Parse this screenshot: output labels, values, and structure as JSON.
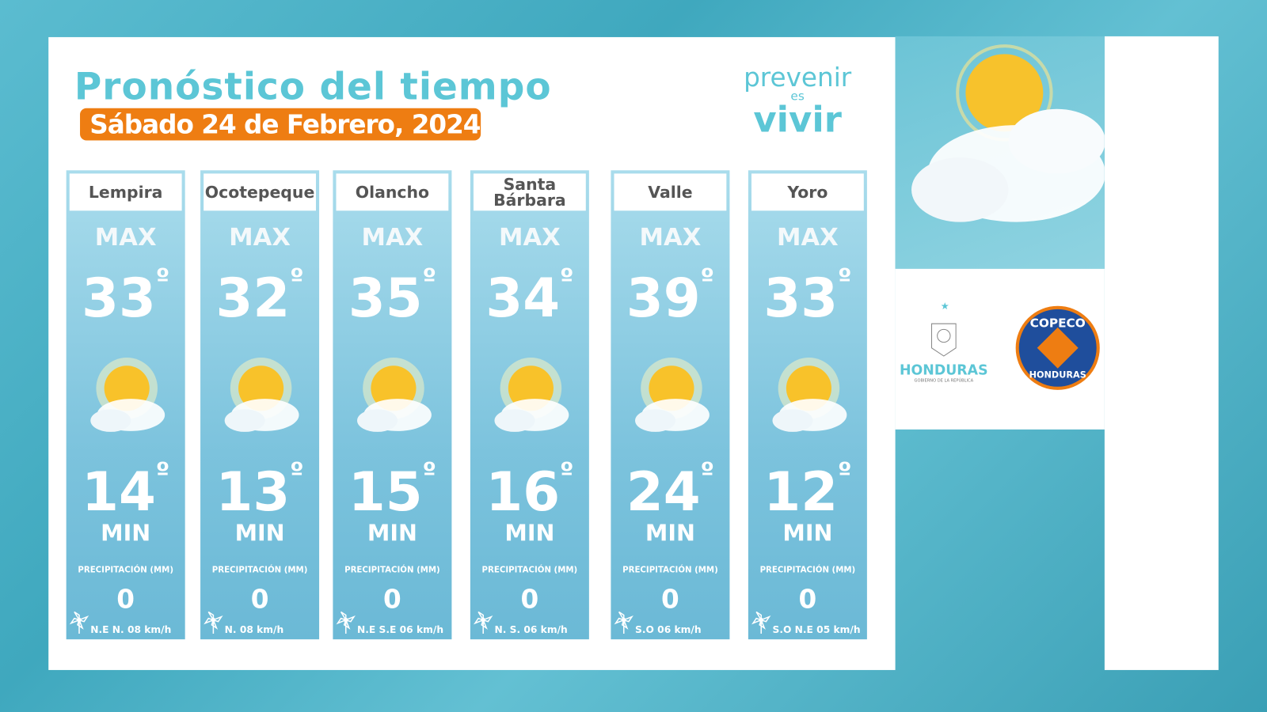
{
  "header": {
    "title": "Pronóstico del tiempo",
    "date": "Sábado 24 de Febrero, 2024"
  },
  "brand": {
    "line1": "prevenir",
    "line2": "es",
    "line3": "vivir"
  },
  "labels": {
    "max": "MAX",
    "min": "MIN",
    "precip": "PRECIPITACIÓN (MM)",
    "deg": "º"
  },
  "cities": [
    {
      "name": "Lempira",
      "max": "33",
      "min": "14",
      "precip": "0",
      "wind": "N.E  N. 08 km/h"
    },
    {
      "name": "Ocotepeque",
      "max": "32",
      "min": "13",
      "precip": "0",
      "wind": "N.   08 km/h"
    },
    {
      "name": "Olancho",
      "max": "35",
      "min": "15",
      "precip": "0",
      "wind": "N.E  S.E 06 km/h"
    },
    {
      "name": "Santa Bárbara",
      "max": "34",
      "min": "16",
      "precip": "0",
      "wind": "N.  S. 06 km/h"
    },
    {
      "name": "Valle",
      "max": "39",
      "min": "24",
      "precip": "0",
      "wind": "S.O 06 km/h"
    },
    {
      "name": "Yoro",
      "max": "33",
      "min": "12",
      "precip": "0",
      "wind": "S.O  N.E 05 km/h"
    }
  ],
  "logos": {
    "gov": "HONDURAS",
    "gov_sub": "GOBIERNO DE LA REPÚBLICA",
    "copeco": "COPECO",
    "copeco_sub": "HONDURAS"
  },
  "colors": {
    "accent": "#5cc6d6",
    "orange": "#ee7d12",
    "copeco_blue": "#1f4e9c"
  }
}
